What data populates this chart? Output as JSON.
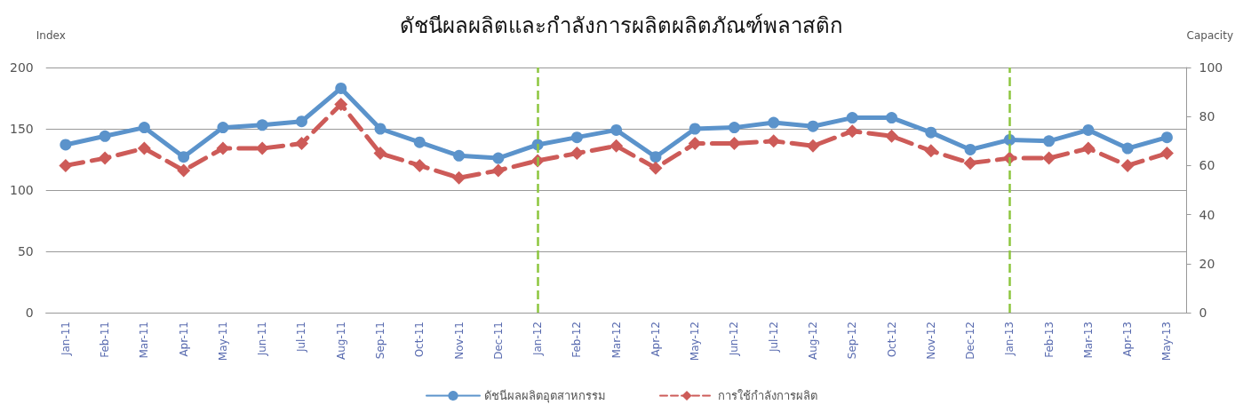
{
  "chart_data": {
    "type": "line",
    "title": "ดัชนีผลผลิตและกำลังการผลิตผลิตภัณฑ์พลาสติก",
    "ylabel": "Index",
    "y2label": "Capacity",
    "categories": [
      "Jan-11",
      "Feb-11",
      "Mar-11",
      "Apr-11",
      "May-11",
      "Jun-11",
      "Jul-11",
      "Aug-11",
      "Sep-11",
      "Oct-11",
      "Nov-11",
      "Dec-11",
      "Jan-12",
      "Feb-12",
      "Mar-12",
      "Apr-12",
      "May-12",
      "Jun-12",
      "Jul-12",
      "Aug-12",
      "Sep-12",
      "Oct-12",
      "Nov-12",
      "Dec-12",
      "Jan-13",
      "Feb-13",
      "Mar-13",
      "Apr-13",
      "May-13"
    ],
    "series": [
      {
        "name": "ดัชนีผลผลิตอุตสาหกรรม",
        "color": "#5b93cb",
        "marker": "circle",
        "line_style": "solid",
        "values": [
          137,
          144,
          151,
          127,
          151,
          153,
          156,
          183,
          150,
          139,
          128,
          126,
          137,
          143,
          149,
          127,
          150,
          151,
          155,
          152,
          159,
          159,
          147,
          133,
          141,
          140,
          149,
          134,
          143
        ]
      },
      {
        "name": "การใช้กำลังการผลิต",
        "color": "#cd5b58",
        "marker": "diamond",
        "line_style": "dashed",
        "axis": "y2",
        "values": [
          60,
          63,
          67,
          58,
          67,
          67,
          69,
          85,
          65,
          60,
          55,
          58,
          62,
          65,
          68,
          59,
          69,
          69,
          70,
          68,
          74,
          72,
          66,
          61,
          63,
          63,
          67,
          60,
          65
        ]
      }
    ],
    "ylim": [
      0,
      200
    ],
    "yticks": [
      0,
      50,
      100,
      150,
      200
    ],
    "y2lim": [
      0,
      100
    ],
    "y2ticks": [
      0,
      20,
      40,
      60,
      80,
      100
    ],
    "ref_lines": [
      {
        "axis": "x",
        "value": "Jan-12",
        "color": "#8dc63f",
        "line_style": "dashed"
      },
      {
        "axis": "x",
        "value": "Jan-13",
        "color": "#8dc63f",
        "line_style": "dashed"
      }
    ],
    "grid": "y",
    "legend": "bottom"
  }
}
